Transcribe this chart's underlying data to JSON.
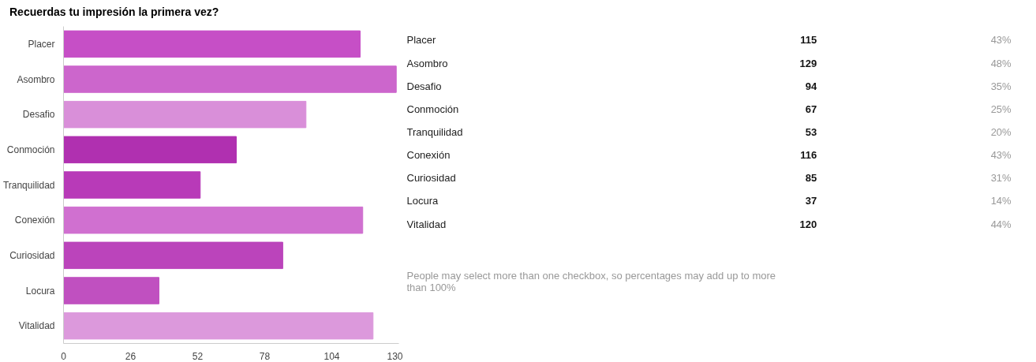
{
  "chart_data": [
    {
      "type": "bar",
      "orientation": "horizontal",
      "title": "Recuerdas tu impresión la primera vez?",
      "categories": [
        "Placer",
        "Asombro",
        "Desafio",
        "Conmoción",
        "Tranquilidad",
        "Conexión",
        "Curiosidad",
        "Locura",
        "Vitalidad"
      ],
      "values": [
        115,
        129,
        94,
        67,
        53,
        116,
        85,
        37,
        120
      ],
      "colors": [
        "#c64fc6",
        "#cc66cc",
        "#d98fd9",
        "#b030b0",
        "#b83ab8",
        "#d070d0",
        "#bb44bb",
        "#c050c0",
        "#dc99dc"
      ],
      "xlim": [
        0,
        130
      ],
      "xticks": [
        0,
        26,
        52,
        78,
        104,
        130
      ]
    },
    {
      "type": "other",
      "annotations": [
        "Placer",
        "115",
        "43%",
        "Asombro",
        "129",
        "48%",
        "Desafio",
        "94",
        "35%",
        "Conmoción",
        "67",
        "25%",
        "Tranquilidad",
        "53",
        "20%",
        "Conexión",
        "116",
        "43%",
        "Curiosidad",
        "85",
        "31%",
        "Locura",
        "37",
        "14%",
        "Vitalidad",
        "120",
        "44%",
        "People may select more than one checkbox, so percentages may add up to more than 100%"
      ]
    }
  ]
}
